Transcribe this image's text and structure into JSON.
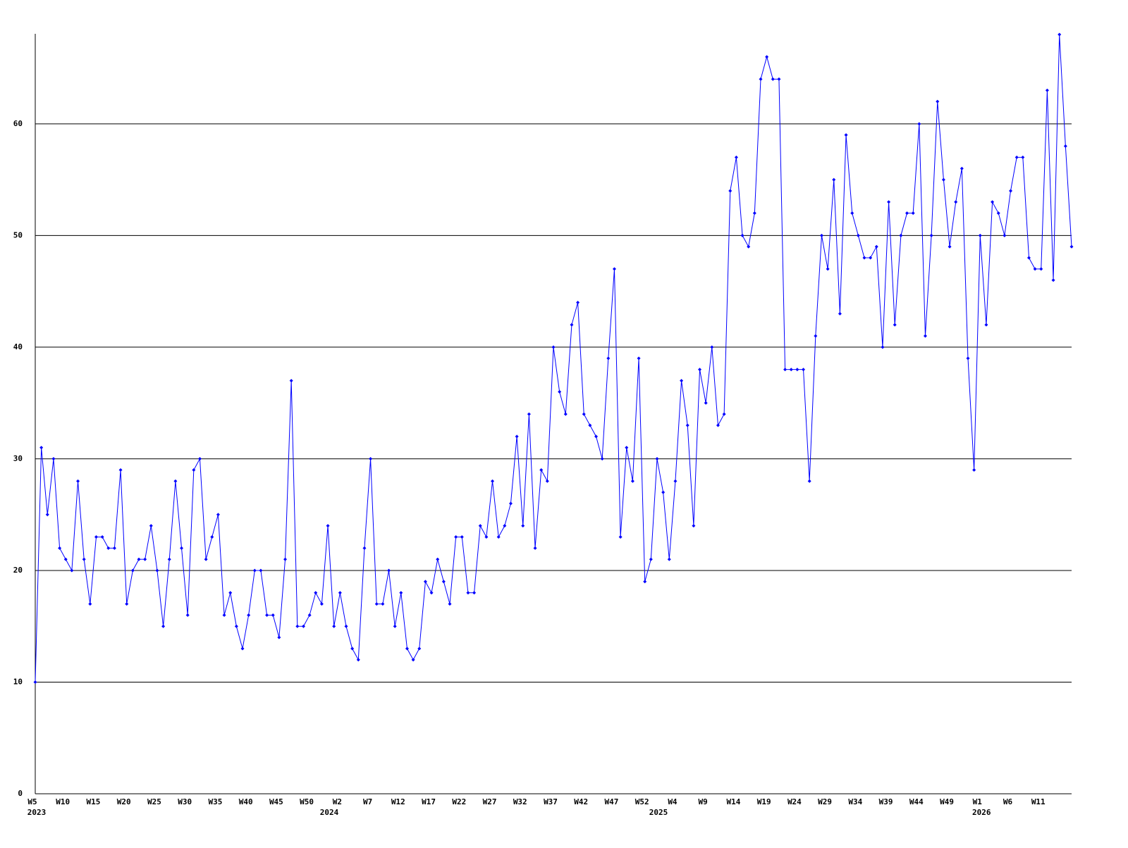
{
  "chart_data": {
    "type": "line",
    "categories": [
      "W5",
      null,
      null,
      null,
      null,
      "W10",
      null,
      null,
      null,
      null,
      "W15",
      null,
      null,
      null,
      null,
      "W20",
      null,
      null,
      null,
      null,
      "W25",
      null,
      null,
      null,
      null,
      "W30",
      null,
      null,
      null,
      null,
      "W35",
      null,
      null,
      null,
      null,
      "W40",
      null,
      null,
      null,
      null,
      "W45",
      null,
      null,
      null,
      null,
      "W50",
      null,
      null,
      null,
      null,
      "W2",
      null,
      null,
      null,
      null,
      "W7",
      null,
      null,
      null,
      null,
      "W12",
      null,
      null,
      null,
      null,
      "W17",
      null,
      null,
      null,
      null,
      "W22",
      null,
      null,
      null,
      null,
      "W27",
      null,
      null,
      null,
      null,
      "W32",
      null,
      null,
      null,
      null,
      "W37",
      null,
      null,
      null,
      null,
      "W42",
      null,
      null,
      null,
      null,
      "W47",
      null,
      null,
      null,
      null,
      "W52",
      null,
      null,
      null,
      null,
      "W4",
      null,
      null,
      null,
      null,
      "W9",
      null,
      null,
      null,
      null,
      "W14",
      null,
      null,
      null,
      null,
      "W19",
      null,
      null,
      null,
      null,
      "W24",
      null,
      null,
      null,
      null,
      "W29",
      null,
      null,
      null,
      null,
      "W34",
      null,
      null,
      null,
      null,
      "W39",
      null,
      null,
      null,
      null,
      "W44",
      null,
      null,
      null,
      null,
      "W49",
      null,
      null,
      null,
      null,
      "W1",
      null,
      null,
      null,
      null,
      "W6",
      null,
      null,
      null,
      null,
      "W11",
      null,
      null,
      null,
      null,
      null
    ],
    "years": [
      "2023",
      null,
      null,
      null,
      null,
      null,
      null,
      null,
      null,
      null,
      null,
      null,
      null,
      null,
      null,
      null,
      null,
      null,
      null,
      null,
      null,
      null,
      null,
      null,
      null,
      null,
      null,
      null,
      null,
      null,
      null,
      null,
      null,
      null,
      null,
      null,
      null,
      null,
      null,
      null,
      null,
      null,
      null,
      null,
      null,
      null,
      null,
      null,
      "2024",
      null,
      null,
      null,
      null,
      null,
      null,
      null,
      null,
      null,
      null,
      null,
      null,
      null,
      null,
      null,
      null,
      null,
      null,
      null,
      null,
      null,
      null,
      null,
      null,
      null,
      null,
      null,
      null,
      null,
      null,
      null,
      null,
      null,
      null,
      null,
      null,
      null,
      null,
      null,
      null,
      null,
      null,
      null,
      null,
      null,
      null,
      null,
      null,
      null,
      null,
      null,
      null,
      null,
      "2025",
      null,
      null,
      null,
      null,
      null,
      null,
      null,
      null,
      null,
      null,
      null,
      null,
      null,
      null,
      null,
      null,
      null,
      null,
      null,
      null,
      null,
      null,
      null,
      null,
      null,
      null,
      null,
      null,
      null,
      null,
      null,
      null,
      null,
      null,
      null,
      null,
      null,
      null,
      null,
      null,
      null,
      null,
      null,
      null,
      null,
      null,
      null,
      null,
      null,
      null,
      null,
      null,
      "2026",
      null,
      null,
      null,
      null,
      null,
      null,
      null,
      null,
      null,
      null,
      null,
      null,
      null,
      null,
      null
    ],
    "series": [
      {
        "color": "#0000ff",
        "values": [
          10,
          31,
          25,
          30,
          22,
          21,
          20,
          28,
          21,
          17,
          23,
          23,
          22,
          22,
          29,
          17,
          20,
          21,
          21,
          24,
          20,
          15,
          21,
          28,
          22,
          16,
          29,
          30,
          21,
          23,
          25,
          16,
          18,
          15,
          13,
          16,
          20,
          20,
          16,
          16,
          14,
          21,
          37,
          15,
          15,
          16,
          18,
          17,
          24,
          15,
          18,
          15,
          13,
          12,
          22,
          30,
          17,
          17,
          20,
          15,
          18,
          13,
          12,
          13,
          19,
          18,
          21,
          19,
          17,
          23,
          23,
          18,
          18,
          24,
          23,
          28,
          23,
          24,
          26,
          32,
          24,
          34,
          22,
          29,
          28,
          40,
          36,
          34,
          42,
          44,
          34,
          33,
          32,
          30,
          39,
          47,
          23,
          31,
          28,
          39,
          19,
          21,
          30,
          27,
          21,
          28,
          37,
          33,
          24,
          38,
          35,
          40,
          33,
          34,
          54,
          57,
          50,
          49,
          52,
          64,
          66,
          64,
          64,
          38,
          38,
          38,
          38,
          28,
          41,
          50,
          47,
          55,
          43,
          59,
          52,
          50,
          48,
          48,
          49,
          40,
          53,
          42,
          50,
          52,
          52,
          60,
          41,
          50,
          62,
          55,
          49,
          53,
          56,
          39,
          29,
          50,
          42,
          53,
          52,
          50,
          54,
          57,
          57,
          48,
          47,
          47,
          63,
          46,
          68,
          58,
          49
        ]
      }
    ],
    "ylim": [
      0,
      68
    ],
    "yticks": [
      0,
      10,
      20,
      30,
      40,
      50,
      60
    ],
    "grid": true
  }
}
